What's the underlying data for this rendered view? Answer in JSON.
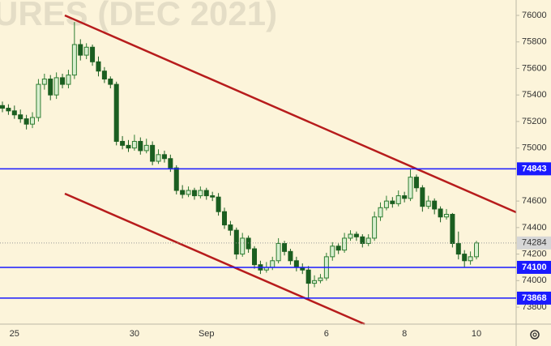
{
  "chart_data": {
    "type": "candlestick",
    "title": "URES (DEC 2021)",
    "categories": [
      null,
      null,
      "25",
      null,
      null,
      null,
      null,
      null,
      null,
      null,
      null,
      null,
      null,
      null,
      null,
      null,
      null,
      null,
      null,
      null,
      null,
      null,
      "30",
      null,
      null,
      null,
      null,
      null,
      null,
      null,
      null,
      null,
      null,
      null,
      "Sep",
      null,
      null,
      null,
      null,
      null,
      null,
      null,
      null,
      null,
      null,
      null,
      null,
      null,
      null,
      null,
      null,
      null,
      null,
      null,
      "6",
      null,
      null,
      null,
      null,
      null,
      null,
      null,
      null,
      null,
      null,
      null,
      null,
      "8",
      null,
      null,
      null,
      null,
      null,
      null,
      null,
      null,
      null,
      null,
      null,
      "10"
    ],
    "open": [
      75320,
      75300,
      75280,
      75250,
      75220,
      75180,
      75230,
      75480,
      75520,
      75400,
      75530,
      75480,
      75550,
      75780,
      75700,
      75760,
      75650,
      75580,
      75520,
      75480,
      75050,
      75020,
      75000,
      75050,
      74980,
      75020,
      74900,
      74950,
      74920,
      74850,
      74680,
      74650,
      74680,
      74640,
      74680,
      74640,
      74630,
      74520,
      74420,
      74380,
      74200,
      74320,
      74240,
      74120,
      74080,
      74100,
      74150,
      74280,
      74220,
      74150,
      74100,
      74080,
      73980,
      74000,
      74020,
      74180,
      74260,
      74230,
      74320,
      74350,
      74330,
      74280,
      74320,
      74480,
      74550,
      74600,
      74580,
      74640,
      74620,
      74780,
      74700,
      74560,
      74600,
      74540,
      74480,
      74500,
      74280,
      74200,
      74150,
      74180
    ],
    "high": [
      75350,
      75330,
      75320,
      75290,
      75250,
      75270,
      75520,
      75560,
      75550,
      75570,
      75560,
      75590,
      75950,
      75820,
      75790,
      75780,
      75690,
      75610,
      75540,
      75500,
      75090,
      75060,
      75100,
      75080,
      75070,
      75050,
      74990,
      74980,
      74950,
      74870,
      74720,
      74710,
      74700,
      74710,
      74700,
      74670,
      74660,
      74550,
      74450,
      74400,
      74360,
      74340,
      74260,
      74150,
      74140,
      74180,
      74320,
      74300,
      74240,
      74180,
      74130,
      74110,
      74040,
      74050,
      74210,
      74290,
      74280,
      74360,
      74380,
      74370,
      74350,
      74350,
      74520,
      74590,
      74640,
      74630,
      74680,
      74670,
      74843,
      74800,
      74720,
      74640,
      74620,
      74560,
      74540,
      74510,
      74370,
      74230,
      74220,
      74300
    ],
    "low": [
      75270,
      75250,
      75220,
      75190,
      75140,
      75150,
      75200,
      75440,
      75360,
      75370,
      75450,
      75450,
      75520,
      75660,
      75670,
      75620,
      75540,
      75490,
      75450,
      75020,
      74990,
      74970,
      74980,
      74950,
      74960,
      74870,
      74880,
      74890,
      74820,
      74650,
      74620,
      74630,
      74610,
      74620,
      74610,
      74600,
      74490,
      74390,
      74340,
      74160,
      74180,
      74210,
      74090,
      74050,
      74060,
      74080,
      74130,
      74190,
      74120,
      74070,
      74050,
      73868,
      73950,
      73980,
      74000,
      74150,
      74200,
      74210,
      74300,
      74300,
      74250,
      74260,
      74300,
      74450,
      74530,
      74550,
      74560,
      74590,
      74600,
      74670,
      74520,
      74540,
      74500,
      74440,
      74460,
      74250,
      74160,
      74100,
      74120,
      74160
    ],
    "close": [
      75300,
      75280,
      75250,
      75220,
      75180,
      75230,
      75480,
      75520,
      75400,
      75530,
      75480,
      75550,
      75780,
      75700,
      75760,
      75650,
      75580,
      75520,
      75480,
      75050,
      75020,
      75000,
      75050,
      74980,
      75020,
      74900,
      74950,
      74920,
      74850,
      74680,
      74650,
      74680,
      74640,
      74680,
      74640,
      74630,
      74520,
      74420,
      74380,
      74200,
      74320,
      74240,
      74120,
      74080,
      74100,
      74150,
      74280,
      74220,
      74150,
      74100,
      74080,
      73980,
      74000,
      74020,
      74180,
      74260,
      74230,
      74320,
      74350,
      74330,
      74280,
      74320,
      74480,
      74550,
      74600,
      74580,
      74640,
      74620,
      74780,
      74700,
      74560,
      74600,
      74540,
      74480,
      74500,
      74280,
      74200,
      74150,
      74180,
      74284
    ],
    "up_color": "#2e7d32",
    "up_fill": "#d9efcf",
    "down_color": "#1b5e20",
    "ylim": [
      73672,
      76116
    ],
    "yticks": [
      73800,
      74000,
      74200,
      74400,
      74600,
      75000,
      75200,
      75400,
      75600,
      75800,
      76000
    ],
    "price_lines": [
      74843,
      74100,
      73868
    ],
    "price_line_color": "#1a1aff",
    "last_price_color": "#d6d6d6"
  }
}
